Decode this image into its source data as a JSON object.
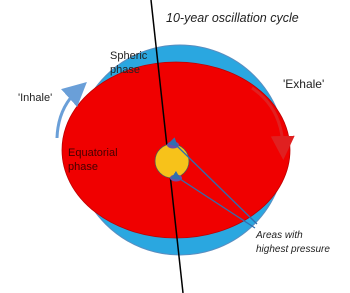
{
  "title": "10-year oscillation cycle",
  "spheric": [
    "Spheric",
    "phase"
  ],
  "inhale": "'Inhale'",
  "exhale": "'Exhale'",
  "equatorial": [
    "Equatorial",
    "phase"
  ],
  "pressure": [
    "Areas with",
    "highest pressure"
  ]
}
